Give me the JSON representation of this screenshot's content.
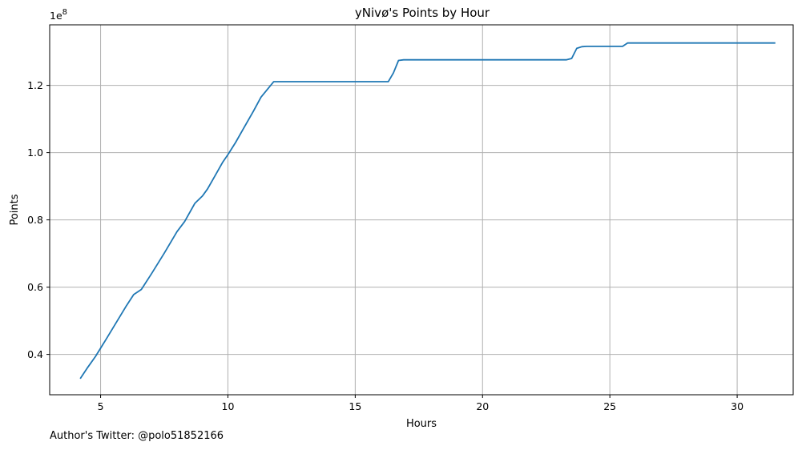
{
  "footnote": "Author's Twitter: @polo51852166",
  "chart_data": {
    "type": "line",
    "title": "yNivø's Points by Hour",
    "xlabel": "Hours",
    "ylabel": "Points",
    "y_multiplier_label": "1e8",
    "xlim": [
      3.0,
      32.2
    ],
    "ylim": [
      28000000,
      138000000
    ],
    "xticks": [
      5,
      10,
      15,
      20,
      25,
      30
    ],
    "xtick_labels": [
      "5",
      "10",
      "15",
      "20",
      "25",
      "30"
    ],
    "yticks": [
      40000000,
      60000000,
      80000000,
      100000000,
      120000000
    ],
    "ytick_labels": [
      "0.4",
      "0.6",
      "0.8",
      "1.0",
      "1.2"
    ],
    "grid": true,
    "line_color": "#1f77b4",
    "grid_color": "#b0b0b0",
    "series": [
      {
        "x": [
          4.2,
          4.5,
          4.8,
          5.2,
          5.6,
          6.0,
          6.3,
          6.6,
          7.0,
          7.5,
          8.0,
          8.3,
          8.7,
          9.0,
          9.2,
          9.5,
          9.8,
          10.0,
          10.3,
          10.6,
          11.0,
          11.3,
          11.8,
          12.5,
          14.0,
          16.0,
          16.3,
          16.5,
          16.7,
          16.9,
          18.0,
          20.0,
          22.0,
          23.3,
          23.5,
          23.7,
          23.9,
          24.1,
          25.0,
          25.5,
          25.7,
          27.0,
          29.0,
          31.5
        ],
        "y": [
          32800000,
          36200000,
          39400000,
          44300000,
          49300000,
          54300000,
          57800000,
          59300000,
          64000000,
          70100000,
          76500000,
          79500000,
          84900000,
          87100000,
          89200000,
          93200000,
          97200000,
          99400000,
          103000000,
          107000000,
          112300000,
          116500000,
          121100000,
          121100000,
          121100000,
          121100000,
          121100000,
          123700000,
          127400000,
          127600000,
          127600000,
          127600000,
          127600000,
          127600000,
          128000000,
          131000000,
          131500000,
          131600000,
          131600000,
          131600000,
          132600000,
          132600000,
          132600000,
          132600000
        ]
      }
    ]
  }
}
